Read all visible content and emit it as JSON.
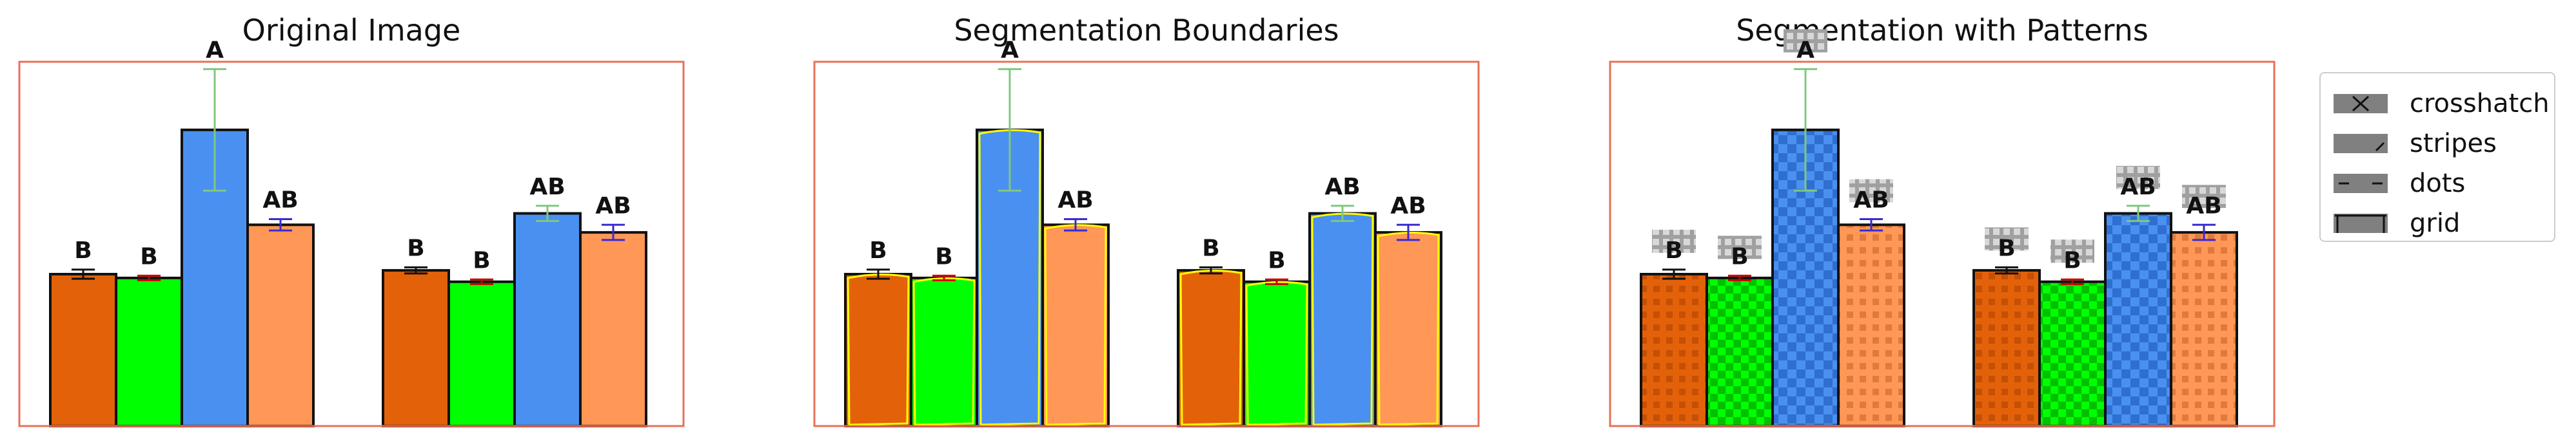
{
  "titles": {
    "p1": "Original Image",
    "p2": "Segmentation Boundaries",
    "p3": "Segmentation with Patterns"
  },
  "legend": {
    "items": [
      {
        "label": "crosshatch",
        "icon": "crosshatch-icon"
      },
      {
        "label": "stripes",
        "icon": "stripes-icon"
      },
      {
        "label": "dots",
        "icon": "dots-icon"
      },
      {
        "label": "grid",
        "icon": "grid-icon"
      }
    ]
  },
  "colors": {
    "orange": "#e36209",
    "green": "#00ff00",
    "blue": "#4a90f0",
    "salmon": "#ff9757",
    "frame": "#e8705a",
    "boundary": "#ffff00",
    "sig": "#111111"
  },
  "chart_data": {
    "type": "bar",
    "groups": 2,
    "bars": [
      {
        "group": 1,
        "color": "orange",
        "value": 0.4,
        "err": 0.012,
        "err_color": "#111111",
        "label": "B"
      },
      {
        "group": 1,
        "color": "green",
        "value": 0.39,
        "err": 0.006,
        "err_color": "#cc0000",
        "label": "B"
      },
      {
        "group": 1,
        "color": "blue",
        "value": 0.78,
        "err": 0.16,
        "err_color": "#80c880",
        "label": "A"
      },
      {
        "group": 1,
        "color": "salmon",
        "value": 0.53,
        "err": 0.015,
        "err_color": "#3a2ad0",
        "label": "AB"
      },
      {
        "group": 2,
        "color": "orange",
        "value": 0.41,
        "err": 0.008,
        "err_color": "#111111",
        "label": "B"
      },
      {
        "group": 2,
        "color": "green",
        "value": 0.38,
        "err": 0.006,
        "err_color": "#cc0000",
        "label": "B"
      },
      {
        "group": 2,
        "color": "blue",
        "value": 0.56,
        "err": 0.02,
        "err_color": "#80c880",
        "label": "AB"
      },
      {
        "group": 2,
        "color": "salmon",
        "value": 0.51,
        "err": 0.02,
        "err_color": "#3a2ad0",
        "label": "AB"
      }
    ],
    "ylim": [
      0,
      1
    ]
  }
}
